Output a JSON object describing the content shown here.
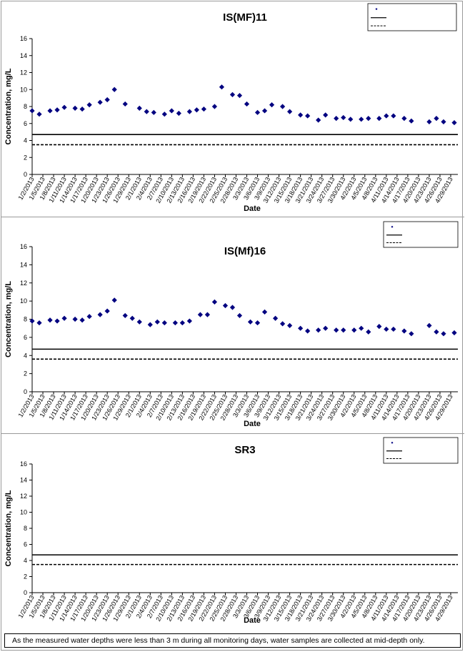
{
  "footnote": "As the measured water depths were less than 3 m during all monitoring days, water samples are collected  at mid-depth only.",
  "colors": {
    "marker": "#000080",
    "line": "#000000",
    "frame": "#9a9a9a"
  },
  "chart_data": [
    {
      "type": "scatter",
      "title": "IS(MF)11",
      "xlabel": "Date",
      "ylabel": "Concentration, mg/L",
      "ylim": [
        0,
        16
      ],
      "yticks": [
        "0",
        "2",
        "4",
        "6",
        "8",
        "10",
        "12",
        "14",
        "16"
      ],
      "xlim": [
        "1/2/2013",
        "5/1/2013"
      ],
      "xticks": [
        "1/2/2013",
        "1/5/2013",
        "1/8/2013",
        "1/11/2013",
        "1/14/2013",
        "1/17/2013",
        "1/20/2013",
        "1/23/2013",
        "1/26/2013",
        "1/29/2013",
        "2/1/2013",
        "2/4/2013",
        "2/7/2013",
        "2/10/2013",
        "2/13/2013",
        "2/16/2013",
        "2/19/2013",
        "2/22/2013",
        "2/25/2013",
        "2/28/2013",
        "3/3/2013",
        "3/6/2013",
        "3/9/2013",
        "3/12/2013",
        "3/15/2013",
        "3/18/2013",
        "3/21/2013",
        "3/24/2013",
        "3/27/2013",
        "3/30/2013",
        "4/2/2013",
        "4/5/2013",
        "4/8/2013",
        "4/11/2013",
        "4/14/2013",
        "4/17/2013",
        "4/20/2013",
        "4/23/2013",
        "4/26/2013",
        "4/29/2013"
      ],
      "legend_position": "top-right",
      "series": [
        {
          "kind": "points",
          "x": [
            "1/2/2013",
            "1/4/2013",
            "1/7/2013",
            "1/9/2013",
            "1/11/2013",
            "1/14/2013",
            "1/16/2013",
            "1/18/2013",
            "1/21/2013",
            "1/23/2013",
            "1/25/2013",
            "1/28/2013",
            "2/1/2013",
            "2/3/2013",
            "2/5/2013",
            "2/8/2013",
            "2/10/2013",
            "2/12/2013",
            "2/15/2013",
            "2/17/2013",
            "2/19/2013",
            "2/22/2013",
            "2/24/2013",
            "2/27/2013",
            "3/1/2013",
            "3/3/2013",
            "3/6/2013",
            "3/8/2013",
            "3/10/2013",
            "3/13/2013",
            "3/15/2013",
            "3/18/2013",
            "3/20/2013",
            "3/23/2013",
            "3/25/2013",
            "3/28/2013",
            "3/30/2013",
            "4/1/2013",
            "4/4/2013",
            "4/6/2013",
            "4/9/2013",
            "4/11/2013",
            "4/13/2013",
            "4/16/2013",
            "4/18/2013",
            "4/23/2013",
            "4/25/2013",
            "4/27/2013",
            "4/30/2013"
          ],
          "values": [
            7.5,
            7.1,
            7.5,
            7.6,
            7.9,
            7.8,
            7.7,
            8.2,
            8.5,
            8.8,
            10.0,
            8.3,
            7.8,
            7.4,
            7.3,
            7.1,
            7.5,
            7.2,
            7.4,
            7.6,
            7.7,
            8.0,
            10.3,
            9.4,
            9.3,
            8.3,
            7.3,
            7.5,
            8.2,
            8.0,
            7.4,
            7.0,
            6.9,
            6.4,
            7.0,
            6.6,
            6.7,
            6.5,
            6.5,
            6.6,
            6.6,
            6.9,
            6.9,
            6.6,
            6.3,
            6.2,
            6.6,
            6.2,
            6.1
          ]
        },
        {
          "kind": "line",
          "value": 4.7,
          "style": "solid"
        },
        {
          "kind": "line",
          "value": 3.5,
          "style": "dashed"
        }
      ]
    },
    {
      "type": "scatter",
      "title": "IS(Mf)16",
      "xlabel": "Date",
      "ylabel": "Concentration, mg/L",
      "ylim": [
        0,
        16
      ],
      "yticks": [
        "0",
        "2",
        "4",
        "6",
        "8",
        "10",
        "12",
        "14",
        "16"
      ],
      "xlim": [
        "1/2/2013",
        "5/1/2013"
      ],
      "xticks": [
        "1/2/2013",
        "1/5/2013",
        "1/8/2013",
        "1/11/2013",
        "1/14/2013",
        "1/17/2013",
        "1/20/2013",
        "1/23/2013",
        "1/26/2013",
        "1/29/2013",
        "2/1/2013",
        "2/4/2013",
        "2/7/2013",
        "2/10/2013",
        "2/13/2013",
        "2/16/2013",
        "2/19/2013",
        "2/22/2013",
        "2/25/2013",
        "2/28/2013",
        "3/3/2013",
        "3/6/2013",
        "3/9/2013",
        "3/12/2013",
        "3/15/2013",
        "3/18/2013",
        "3/21/2013",
        "3/24/2013",
        "3/27/2013",
        "3/30/2013",
        "4/2/2013",
        "4/5/2013",
        "4/8/2013",
        "4/11/2013",
        "4/14/2013",
        "4/17/2013",
        "4/20/2013",
        "4/23/2013",
        "4/26/2013",
        "4/29/2013"
      ],
      "legend_position": "top-right",
      "series": [
        {
          "kind": "points",
          "x": [
            "1/2/2013",
            "1/4/2013",
            "1/7/2013",
            "1/9/2013",
            "1/11/2013",
            "1/14/2013",
            "1/16/2013",
            "1/18/2013",
            "1/21/2013",
            "1/23/2013",
            "1/25/2013",
            "1/28/2013",
            "1/30/2013",
            "2/1/2013",
            "2/4/2013",
            "2/6/2013",
            "2/8/2013",
            "2/11/2013",
            "2/13/2013",
            "2/15/2013",
            "2/18/2013",
            "2/20/2013",
            "2/22/2013",
            "2/25/2013",
            "2/27/2013",
            "3/1/2013",
            "3/4/2013",
            "3/6/2013",
            "3/8/2013",
            "3/11/2013",
            "3/13/2013",
            "3/15/2013",
            "3/18/2013",
            "3/20/2013",
            "3/23/2013",
            "3/25/2013",
            "3/28/2013",
            "3/30/2013",
            "4/2/2013",
            "4/4/2013",
            "4/6/2013",
            "4/9/2013",
            "4/11/2013",
            "4/13/2013",
            "4/16/2013",
            "4/18/2013",
            "4/23/2013",
            "4/25/2013",
            "4/27/2013",
            "4/30/2013"
          ],
          "values": [
            7.8,
            7.6,
            7.9,
            7.8,
            8.1,
            8.0,
            7.9,
            8.3,
            8.5,
            8.9,
            10.1,
            8.4,
            8.1,
            7.7,
            7.4,
            7.7,
            7.6,
            7.6,
            7.6,
            7.8,
            8.5,
            8.5,
            9.9,
            9.5,
            9.3,
            8.4,
            7.7,
            7.6,
            8.8,
            8.1,
            7.5,
            7.3,
            7.0,
            6.7,
            6.8,
            7.0,
            6.8,
            6.8,
            6.8,
            7.0,
            6.6,
            7.2,
            6.9,
            6.9,
            6.7,
            6.4,
            7.3,
            6.6,
            6.4,
            6.5
          ]
        },
        {
          "kind": "line",
          "value": 4.7,
          "style": "solid"
        },
        {
          "kind": "line",
          "value": 3.6,
          "style": "dashed"
        }
      ]
    },
    {
      "type": "scatter",
      "title": "SR3",
      "xlabel": "Date",
      "ylabel": "Concentration, mg/L",
      "ylim": [
        0,
        16
      ],
      "yticks": [
        "0",
        "2",
        "4",
        "6",
        "8",
        "10",
        "12",
        "14",
        "16"
      ],
      "xlim": [
        "1/2/2013",
        "5/1/2013"
      ],
      "xticks": [
        "1/2/2013",
        "1/5/2013",
        "1/8/2013",
        "1/11/2013",
        "1/14/2013",
        "1/17/2013",
        "1/20/2013",
        "1/23/2013",
        "1/26/2013",
        "1/29/2013",
        "2/1/2013",
        "2/4/2013",
        "2/7/2013",
        "2/10/2013",
        "2/13/2013",
        "2/16/2013",
        "2/19/2013",
        "2/22/2013",
        "2/25/2013",
        "2/28/2013",
        "3/3/2013",
        "3/6/2013",
        "3/9/2013",
        "3/12/2013",
        "3/15/2013",
        "3/18/2013",
        "3/21/2013",
        "3/24/2013",
        "3/27/2013",
        "3/30/2013",
        "4/2/2013",
        "4/5/2013",
        "4/8/2013",
        "4/11/2013",
        "4/14/2013",
        "4/17/2013",
        "4/20/2013",
        "4/23/2013",
        "4/26/2013",
        "4/29/2013"
      ],
      "legend_position": "top-right",
      "series": [
        {
          "kind": "points",
          "x": [],
          "values": []
        },
        {
          "kind": "line",
          "value": 4.7,
          "style": "solid"
        },
        {
          "kind": "line",
          "value": 3.5,
          "style": "dashed"
        }
      ]
    }
  ]
}
